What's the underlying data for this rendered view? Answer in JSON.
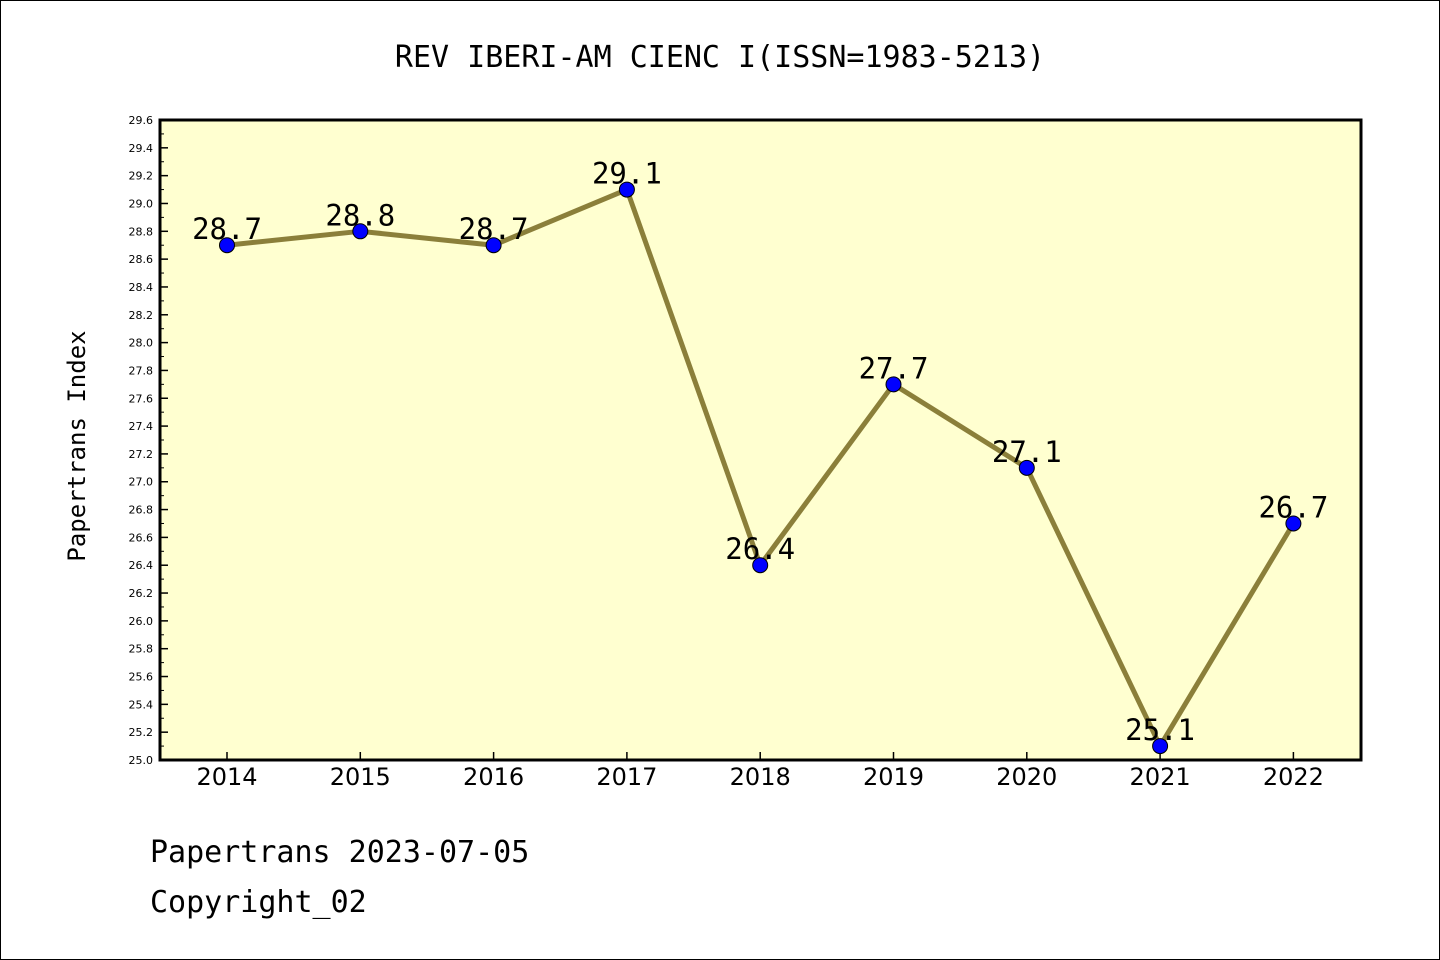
{
  "chart_data": {
    "type": "line",
    "title": "REV IBERI-AM CIENC I(ISSN=1983-5213)",
    "xlabel": "",
    "ylabel": "Papertrans Index",
    "categories": [
      "2014",
      "2015",
      "2016",
      "2017",
      "2018",
      "2019",
      "2020",
      "2021",
      "2022"
    ],
    "values": [
      28.7,
      28.8,
      28.7,
      29.1,
      26.4,
      27.7,
      27.1,
      25.1,
      26.7
    ],
    "data_labels": [
      "28.7",
      "28.8",
      "28.7",
      "29.1",
      "26.4",
      "27.7",
      "27.1",
      "25.1",
      "26.7"
    ],
    "ylim": [
      25.0,
      29.6
    ],
    "yticks": [
      "25.0",
      "25.2",
      "25.4",
      "25.6",
      "25.8",
      "26.0",
      "26.2",
      "26.4",
      "26.6",
      "26.8",
      "27.0",
      "27.2",
      "27.4",
      "27.6",
      "27.8",
      "28.0",
      "28.2",
      "28.4",
      "28.6",
      "28.8",
      "29.0",
      "29.2",
      "29.4",
      "29.6"
    ],
    "grid": false,
    "colors": {
      "background": "#ffffd0",
      "line": "#8b7f3a",
      "marker": "#0000ff"
    }
  },
  "footer": {
    "date_line": "Papertrans 2023-07-05",
    "copyright": "Copyright_02"
  }
}
